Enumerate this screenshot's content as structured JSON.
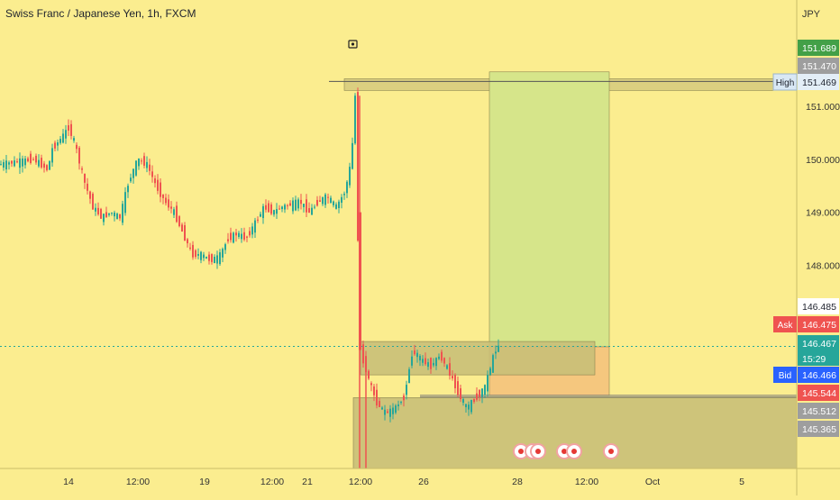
{
  "title": "Swiss Franc / Japanese Yen, 1h, FXCM",
  "currency": "JPY",
  "colors": {
    "background": "#fbed8f",
    "up": "#26a69a",
    "down": "#ef5350",
    "target_zone": "#d6e58a",
    "stop_zone": "#f5c77e",
    "zone_box": "#c9bf78",
    "ask": "#ef5350",
    "bid": "#2962ff",
    "high_label": "#d9e8f5"
  },
  "chart_data": {
    "type": "candlestick",
    "title": "Swiss Franc / Japanese Yen, 1h, FXCM",
    "y_unit": "JPY",
    "ylim": [
      147.0,
      152.4
    ],
    "y_ticks": [
      148.0,
      149.0,
      150.0,
      151.0
    ],
    "x_ticks": [
      "14",
      "12:00",
      "19",
      "12:00",
      "21",
      "12:00",
      "26",
      "28",
      "12:00",
      "Oct",
      "5"
    ],
    "grid": false,
    "price_path": [
      [
        0,
        149.9
      ],
      [
        20,
        149.95
      ],
      [
        40,
        150.0
      ],
      [
        55,
        149.8
      ],
      [
        60,
        150.2
      ],
      [
        70,
        150.4
      ],
      [
        78,
        150.6
      ],
      [
        85,
        150.3
      ],
      [
        95,
        149.6
      ],
      [
        105,
        149.1
      ],
      [
        115,
        148.9
      ],
      [
        125,
        149.0
      ],
      [
        135,
        148.9
      ],
      [
        145,
        149.6
      ],
      [
        155,
        150.0
      ],
      [
        165,
        149.9
      ],
      [
        175,
        149.5
      ],
      [
        185,
        149.2
      ],
      [
        195,
        149.0
      ],
      [
        205,
        148.6
      ],
      [
        215,
        148.2
      ],
      [
        225,
        148.2
      ],
      [
        235,
        148.1
      ],
      [
        245,
        148.15
      ],
      [
        255,
        148.5
      ],
      [
        265,
        148.6
      ],
      [
        275,
        148.5
      ],
      [
        285,
        148.8
      ],
      [
        295,
        149.1
      ],
      [
        305,
        149.0
      ],
      [
        315,
        149.1
      ],
      [
        325,
        149.15
      ],
      [
        335,
        149.2
      ],
      [
        345,
        149.0
      ],
      [
        355,
        149.2
      ],
      [
        365,
        149.3
      ],
      [
        375,
        149.1
      ],
      [
        385,
        149.4
      ],
      [
        392,
        150.0
      ],
      [
        396,
        151.2
      ],
      [
        399,
        148.5
      ]
    ],
    "post_drop_path": [
      [
        401,
        146.45
      ],
      [
        410,
        145.9
      ],
      [
        420,
        145.4
      ],
      [
        430,
        145.2
      ],
      [
        440,
        145.3
      ],
      [
        450,
        145.5
      ],
      [
        460,
        146.4
      ],
      [
        470,
        146.2
      ],
      [
        480,
        146.1
      ],
      [
        490,
        146.3
      ],
      [
        500,
        146.0
      ],
      [
        510,
        145.6
      ],
      [
        520,
        145.3
      ],
      [
        530,
        145.5
      ],
      [
        540,
        145.7
      ],
      [
        548,
        146.2
      ],
      [
        553,
        146.46
      ]
    ],
    "drop_candle": {
      "open": 151.2,
      "low": 142.9,
      "close": 146.4
    },
    "price_labels": [
      {
        "label": "",
        "value": "151.689",
        "price": 151.689,
        "kind": "green"
      },
      {
        "label": "",
        "value": "151.470",
        "price": 151.47,
        "kind": "gray"
      },
      {
        "label": "High",
        "value": "151.469",
        "price": 151.469,
        "kind": "high"
      },
      {
        "label": "",
        "value": "146.485",
        "price": 146.485,
        "kind": "white"
      },
      {
        "label": "Ask",
        "value": "146.475",
        "price": 146.475,
        "kind": "ask"
      },
      {
        "label": "",
        "value": "146.467",
        "price": 146.467,
        "kind": "teal"
      },
      {
        "label": "Bid",
        "value": "146.466",
        "price": 146.466,
        "kind": "bid"
      },
      {
        "label": "",
        "value": "145.544",
        "price": 145.544,
        "kind": "red"
      },
      {
        "label": "",
        "value": "145.512",
        "price": 145.512,
        "kind": "gray"
      },
      {
        "label": "",
        "value": "145.365",
        "price": 145.365,
        "kind": "gray"
      }
    ],
    "countdown": "15:29",
    "zones": [
      {
        "name": "high-resistance-box",
        "top": 151.52,
        "bottom": 151.3
      },
      {
        "name": "target-zone",
        "top": 151.65,
        "bottom": 146.46
      },
      {
        "name": "stop-zone",
        "top": 146.46,
        "bottom": 145.54
      },
      {
        "name": "entry-box",
        "top": 146.56,
        "bottom": 145.93
      },
      {
        "name": "lower-demand-box",
        "top": 145.5,
        "bottom": 142.9
      }
    ],
    "current_price": 146.467
  }
}
